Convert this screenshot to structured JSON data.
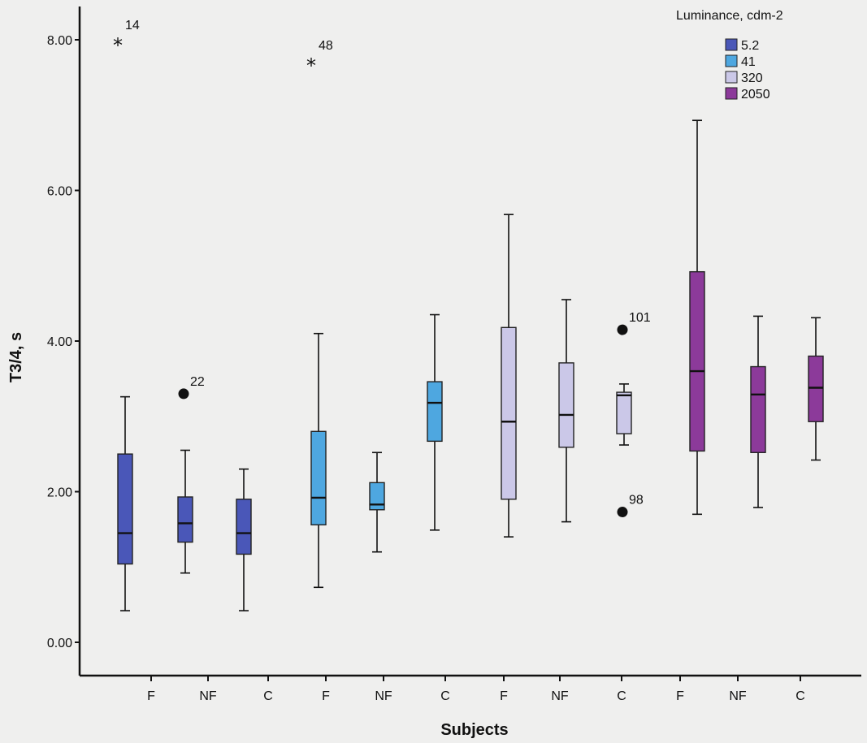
{
  "chart_data": {
    "type": "boxplot",
    "ylabel": "T3/4, s",
    "xlabel": "Subjects",
    "ylim": [
      -0.3,
      8.5
    ],
    "yticks": [
      "0.00",
      "2.00",
      "4.00",
      "6.00",
      "8.00"
    ],
    "yticks_values": [
      0,
      2,
      4,
      6,
      8
    ],
    "legend": {
      "title": "Luminance, cdm-2",
      "position": "top-right",
      "items": [
        {
          "label": "5.2",
          "color": "#4a57b8"
        },
        {
          "label": "41",
          "color": "#4ea7e0"
        },
        {
          "label": "320",
          "color": "#cbc8e8"
        },
        {
          "label": "2050",
          "color": "#8c3a9a"
        }
      ]
    },
    "categories": [
      "F",
      "NF",
      "C",
      "F",
      "NF",
      "C",
      "F",
      "NF",
      "C",
      "F",
      "NF",
      "C"
    ],
    "boxes": [
      {
        "subject": "F",
        "luminance": "5.2",
        "min": 0.42,
        "q1": 1.04,
        "median": 1.45,
        "q3": 2.5,
        "max": 3.26
      },
      {
        "subject": "NF",
        "luminance": "5.2",
        "min": 0.92,
        "q1": 1.33,
        "median": 1.58,
        "q3": 1.93,
        "max": 2.55
      },
      {
        "subject": "C",
        "luminance": "5.2",
        "min": 0.42,
        "q1": 1.17,
        "median": 1.45,
        "q3": 1.9,
        "max": 2.3
      },
      {
        "subject": "F",
        "luminance": "41",
        "min": 0.73,
        "q1": 1.56,
        "median": 1.92,
        "q3": 2.8,
        "max": 4.1
      },
      {
        "subject": "NF",
        "luminance": "41",
        "min": 1.2,
        "q1": 1.76,
        "median": 1.83,
        "q3": 2.12,
        "max": 2.52
      },
      {
        "subject": "C",
        "luminance": "41",
        "min": 1.49,
        "q1": 2.67,
        "median": 3.18,
        "q3": 3.46,
        "max": 4.35
      },
      {
        "subject": "F",
        "luminance": "320",
        "min": 1.4,
        "q1": 1.9,
        "median": 2.93,
        "q3": 4.18,
        "max": 5.68
      },
      {
        "subject": "NF",
        "luminance": "320",
        "min": 1.6,
        "q1": 2.59,
        "median": 3.02,
        "q3": 3.71,
        "max": 4.55
      },
      {
        "subject": "C",
        "luminance": "320",
        "min": 2.62,
        "q1": 2.77,
        "median": 3.28,
        "q3": 3.32,
        "max": 3.43
      },
      {
        "subject": "F",
        "luminance": "2050",
        "min": 1.7,
        "q1": 2.54,
        "median": 3.6,
        "q3": 4.92,
        "max": 6.93
      },
      {
        "subject": "NF",
        "luminance": "2050",
        "min": 1.79,
        "q1": 2.52,
        "median": 3.29,
        "q3": 3.66,
        "max": 4.33
      },
      {
        "subject": "C",
        "luminance": "2050",
        "min": 2.42,
        "q1": 2.93,
        "median": 3.38,
        "q3": 3.8,
        "max": 4.31
      }
    ],
    "outliers": [
      {
        "box": 0,
        "value": 8.0,
        "label": "14",
        "marker": "star"
      },
      {
        "box": 1,
        "value": 3.3,
        "label": "22",
        "marker": "circle"
      },
      {
        "box": 3,
        "value": 7.73,
        "label": "48",
        "marker": "star"
      },
      {
        "box": 8,
        "value": 4.15,
        "label": "101",
        "marker": "circle"
      },
      {
        "box": 8,
        "value": 1.73,
        "label": "98",
        "marker": "circle"
      }
    ]
  }
}
